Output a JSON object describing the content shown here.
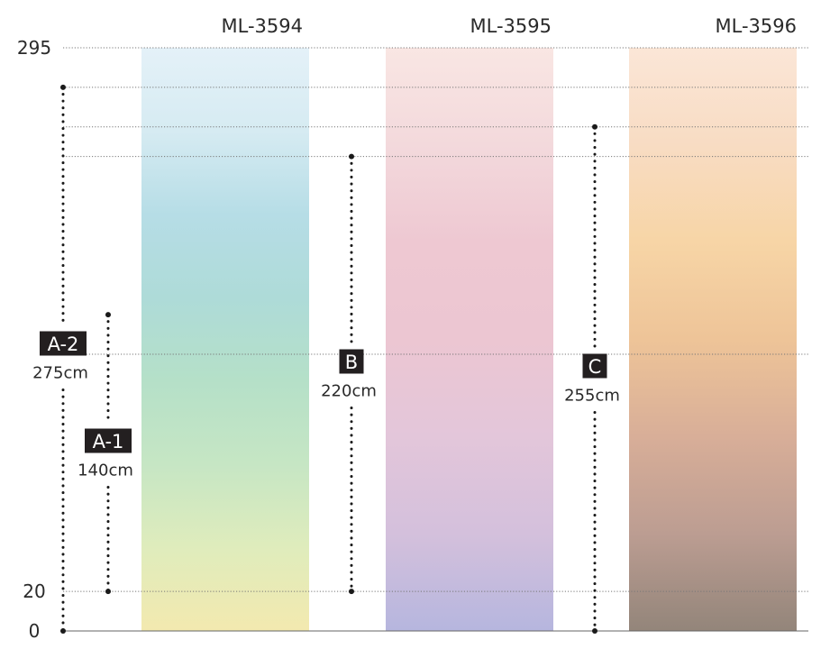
{
  "axis": {
    "labels": [
      {
        "text": "295",
        "value": 295
      },
      {
        "text": "20",
        "value": 20
      },
      {
        "text": "0",
        "value": 0
      }
    ],
    "max": 295
  },
  "panels": [
    {
      "code": "ML-3594",
      "colors": [
        "#e4f1f8",
        "#d6ebf2",
        "#b6dde6",
        "#aedbd8",
        "#b5e0c8",
        "#c6e6c4",
        "#dfecbc",
        "#f3e9af"
      ]
    },
    {
      "code": "ML-3595",
      "colors": [
        "#f9e6e3",
        "#f3d9dc",
        "#eec8d2",
        "#ecc6d2",
        "#e3c6da",
        "#d4c0dc",
        "#b6b6de"
      ]
    },
    {
      "code": "ML-3596",
      "colors": [
        "#fbe6d7",
        "#f8dcc3",
        "#f7d5a6",
        "#eec498",
        "#d8ae98",
        "#bc9d92",
        "#93857a"
      ]
    }
  ],
  "gridlines": [
    295,
    275,
    255,
    240,
    140,
    20,
    0
  ],
  "dimensions": [
    {
      "tag": "A-1",
      "size": "140cm",
      "from": 20,
      "to": 160
    },
    {
      "tag": "A-2",
      "size": "275cm",
      "from": 0,
      "to": 275
    },
    {
      "tag": "B",
      "size": "220cm",
      "from": 20,
      "to": 240
    },
    {
      "tag": "C",
      "size": "255cm",
      "from": 0,
      "to": 255
    }
  ]
}
